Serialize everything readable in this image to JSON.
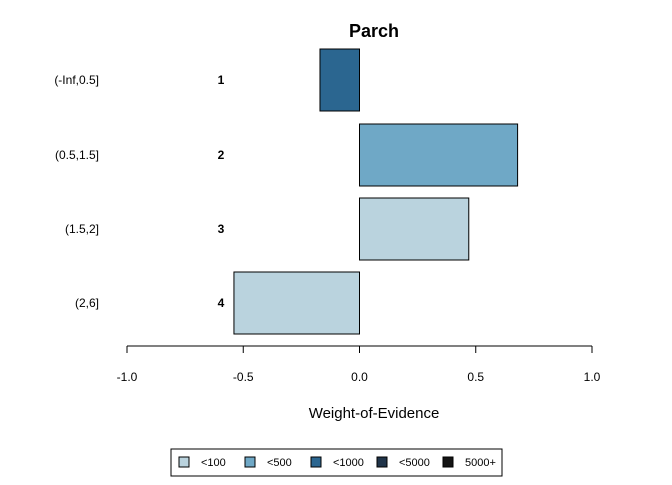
{
  "chart_data": {
    "type": "bar",
    "orientation": "horizontal",
    "title": "Parch",
    "xlabel": "Weight-of-Evidence",
    "ylabel": "",
    "xlim": [
      -1.0,
      1.0
    ],
    "xticks": [
      -1.0,
      -0.5,
      0.0,
      0.5,
      1.0
    ],
    "xtick_labels": [
      "-1.0",
      "-0.5",
      "0.0",
      "0.5",
      "1.0"
    ],
    "grid": false,
    "categories": [
      "(-Inf,0.5]",
      "(0.5,1.5]",
      "(1.5,2]",
      "(2,6]"
    ],
    "bar_labels": [
      "1",
      "2",
      "3",
      "4"
    ],
    "values": [
      -0.17,
      0.68,
      0.47,
      -0.54
    ],
    "bar_classes": [
      "<1000",
      "<500",
      "<100",
      "<100"
    ],
    "legend": {
      "position": "bottom",
      "entries": [
        {
          "label": "<100",
          "color": "#bad3de"
        },
        {
          "label": "<500",
          "color": "#6fa8c6"
        },
        {
          "label": "<1000",
          "color": "#2b6690"
        },
        {
          "label": "<5000",
          "color": "#203449"
        },
        {
          "label": "5000+",
          "color": "#141414"
        }
      ]
    }
  }
}
